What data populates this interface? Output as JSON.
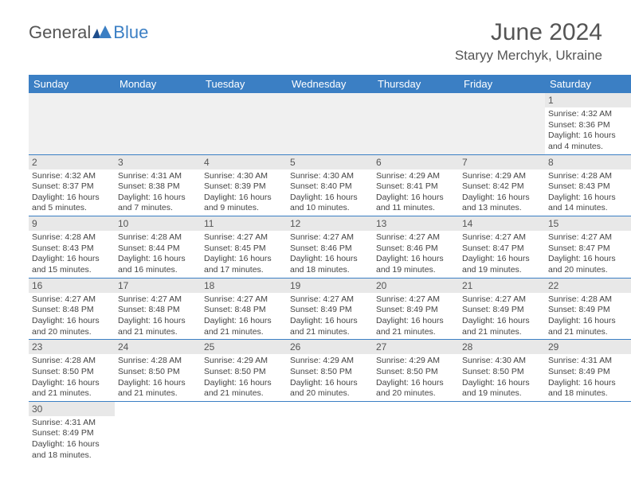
{
  "logo": {
    "text1": "General",
    "text2": "Blue"
  },
  "header": {
    "title": "June 2024",
    "location": "Staryy Merchyk, Ukraine"
  },
  "colors": {
    "header_bg": "#3b7fc4",
    "header_text": "#ffffff",
    "daynum_bg": "#e8e8e8",
    "border": "#3b7fc4"
  },
  "dayNames": [
    "Sunday",
    "Monday",
    "Tuesday",
    "Wednesday",
    "Thursday",
    "Friday",
    "Saturday"
  ],
  "weeks": [
    [
      null,
      null,
      null,
      null,
      null,
      null,
      {
        "d": "1",
        "sr": "4:32 AM",
        "ss": "8:36 PM",
        "dl": "16 hours and 4 minutes."
      }
    ],
    [
      {
        "d": "2",
        "sr": "4:32 AM",
        "ss": "8:37 PM",
        "dl": "16 hours and 5 minutes."
      },
      {
        "d": "3",
        "sr": "4:31 AM",
        "ss": "8:38 PM",
        "dl": "16 hours and 7 minutes."
      },
      {
        "d": "4",
        "sr": "4:30 AM",
        "ss": "8:39 PM",
        "dl": "16 hours and 9 minutes."
      },
      {
        "d": "5",
        "sr": "4:30 AM",
        "ss": "8:40 PM",
        "dl": "16 hours and 10 minutes."
      },
      {
        "d": "6",
        "sr": "4:29 AM",
        "ss": "8:41 PM",
        "dl": "16 hours and 11 minutes."
      },
      {
        "d": "7",
        "sr": "4:29 AM",
        "ss": "8:42 PM",
        "dl": "16 hours and 13 minutes."
      },
      {
        "d": "8",
        "sr": "4:28 AM",
        "ss": "8:43 PM",
        "dl": "16 hours and 14 minutes."
      }
    ],
    [
      {
        "d": "9",
        "sr": "4:28 AM",
        "ss": "8:43 PM",
        "dl": "16 hours and 15 minutes."
      },
      {
        "d": "10",
        "sr": "4:28 AM",
        "ss": "8:44 PM",
        "dl": "16 hours and 16 minutes."
      },
      {
        "d": "11",
        "sr": "4:27 AM",
        "ss": "8:45 PM",
        "dl": "16 hours and 17 minutes."
      },
      {
        "d": "12",
        "sr": "4:27 AM",
        "ss": "8:46 PM",
        "dl": "16 hours and 18 minutes."
      },
      {
        "d": "13",
        "sr": "4:27 AM",
        "ss": "8:46 PM",
        "dl": "16 hours and 19 minutes."
      },
      {
        "d": "14",
        "sr": "4:27 AM",
        "ss": "8:47 PM",
        "dl": "16 hours and 19 minutes."
      },
      {
        "d": "15",
        "sr": "4:27 AM",
        "ss": "8:47 PM",
        "dl": "16 hours and 20 minutes."
      }
    ],
    [
      {
        "d": "16",
        "sr": "4:27 AM",
        "ss": "8:48 PM",
        "dl": "16 hours and 20 minutes."
      },
      {
        "d": "17",
        "sr": "4:27 AM",
        "ss": "8:48 PM",
        "dl": "16 hours and 21 minutes."
      },
      {
        "d": "18",
        "sr": "4:27 AM",
        "ss": "8:48 PM",
        "dl": "16 hours and 21 minutes."
      },
      {
        "d": "19",
        "sr": "4:27 AM",
        "ss": "8:49 PM",
        "dl": "16 hours and 21 minutes."
      },
      {
        "d": "20",
        "sr": "4:27 AM",
        "ss": "8:49 PM",
        "dl": "16 hours and 21 minutes."
      },
      {
        "d": "21",
        "sr": "4:27 AM",
        "ss": "8:49 PM",
        "dl": "16 hours and 21 minutes."
      },
      {
        "d": "22",
        "sr": "4:28 AM",
        "ss": "8:49 PM",
        "dl": "16 hours and 21 minutes."
      }
    ],
    [
      {
        "d": "23",
        "sr": "4:28 AM",
        "ss": "8:50 PM",
        "dl": "16 hours and 21 minutes."
      },
      {
        "d": "24",
        "sr": "4:28 AM",
        "ss": "8:50 PM",
        "dl": "16 hours and 21 minutes."
      },
      {
        "d": "25",
        "sr": "4:29 AM",
        "ss": "8:50 PM",
        "dl": "16 hours and 21 minutes."
      },
      {
        "d": "26",
        "sr": "4:29 AM",
        "ss": "8:50 PM",
        "dl": "16 hours and 20 minutes."
      },
      {
        "d": "27",
        "sr": "4:29 AM",
        "ss": "8:50 PM",
        "dl": "16 hours and 20 minutes."
      },
      {
        "d": "28",
        "sr": "4:30 AM",
        "ss": "8:50 PM",
        "dl": "16 hours and 19 minutes."
      },
      {
        "d": "29",
        "sr": "4:31 AM",
        "ss": "8:49 PM",
        "dl": "16 hours and 18 minutes."
      }
    ],
    [
      {
        "d": "30",
        "sr": "4:31 AM",
        "ss": "8:49 PM",
        "dl": "16 hours and 18 minutes."
      },
      null,
      null,
      null,
      null,
      null,
      null
    ]
  ],
  "labels": {
    "sunrise": "Sunrise:",
    "sunset": "Sunset:",
    "daylight": "Daylight:"
  }
}
